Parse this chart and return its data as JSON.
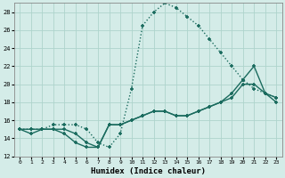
{
  "xlabel": "Humidex (Indice chaleur)",
  "xlim": [
    -0.5,
    23.5
  ],
  "ylim": [
    12,
    29
  ],
  "xticks": [
    0,
    1,
    2,
    3,
    4,
    5,
    6,
    7,
    8,
    9,
    10,
    11,
    12,
    13,
    14,
    15,
    16,
    17,
    18,
    19,
    20,
    21,
    22,
    23
  ],
  "yticks": [
    12,
    14,
    16,
    18,
    20,
    22,
    24,
    26,
    28
  ],
  "background_color": "#d4ece8",
  "grid_color": "#aed4cc",
  "line_color": "#1a6b5e",
  "line1_x": [
    0,
    1,
    2,
    3,
    4,
    5,
    6,
    7,
    8,
    9,
    10,
    11,
    12,
    13,
    14,
    15,
    16,
    17,
    18,
    19,
    20,
    21,
    22,
    23
  ],
  "line1_y": [
    15,
    14.5,
    15,
    15,
    14.5,
    13.5,
    13.0,
    13.0,
    15.5,
    15.5,
    16.0,
    16.5,
    17.0,
    17.0,
    16.5,
    16.5,
    17.0,
    17.5,
    18.0,
    19.0,
    20.5,
    22.0,
    19.0,
    18.0
  ],
  "line2_x": [
    0,
    1,
    2,
    3,
    4,
    5,
    6,
    7,
    8,
    9,
    10,
    11,
    12,
    13,
    14,
    15,
    16,
    17,
    18,
    19,
    20,
    21,
    22,
    23
  ],
  "line2_y": [
    15,
    15,
    15,
    15,
    15,
    14.5,
    13.5,
    13.0,
    15.5,
    15.5,
    16.0,
    16.5,
    17.0,
    17.0,
    16.5,
    16.5,
    17.0,
    17.5,
    18.0,
    18.5,
    20.0,
    20.0,
    19.0,
    18.5
  ],
  "line3_x": [
    0,
    1,
    2,
    3,
    4,
    5,
    6,
    7,
    8,
    9,
    10,
    11,
    12,
    13,
    14,
    15,
    16,
    17,
    18,
    19,
    20,
    21,
    22,
    23
  ],
  "line3_y": [
    15,
    15,
    15,
    15.5,
    15.5,
    15.5,
    15.0,
    13.5,
    13.0,
    14.5,
    19.5,
    26.5,
    28.0,
    29.0,
    28.5,
    27.5,
    26.5,
    25.0,
    23.5,
    22.0,
    20.5,
    19.5,
    19.0,
    18.5
  ],
  "line3_style": "dotted",
  "line12_style": "solid"
}
